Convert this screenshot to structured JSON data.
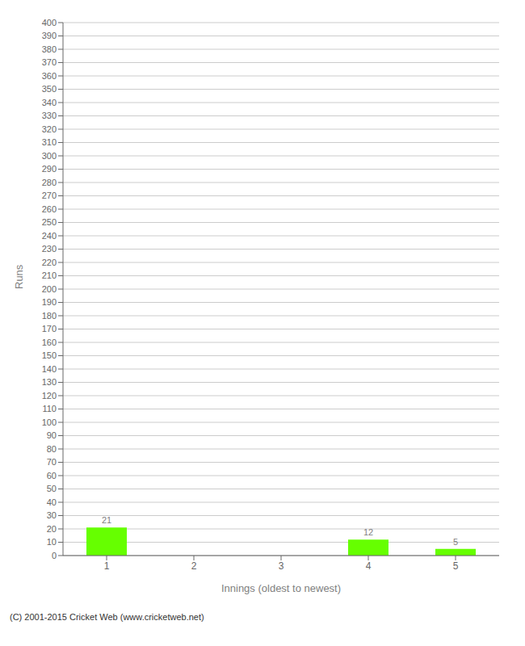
{
  "chart_data": {
    "type": "bar",
    "categories": [
      "1",
      "2",
      "3",
      "4",
      "5"
    ],
    "values": [
      21,
      0,
      0,
      12,
      5
    ],
    "color": "#66ff00",
    "xlabel": "Innings (oldest to newest)",
    "ylabel": "Runs",
    "ylim": [
      0,
      400
    ],
    "yticks": [
      0,
      10,
      20,
      30,
      40,
      50,
      60,
      70,
      80,
      90,
      100,
      110,
      120,
      130,
      140,
      150,
      160,
      170,
      180,
      190,
      200,
      210,
      220,
      230,
      240,
      250,
      260,
      270,
      280,
      290,
      300,
      310,
      320,
      330,
      340,
      350,
      360,
      370,
      380,
      390,
      400
    ],
    "grid": true,
    "data_labels": true,
    "annotations": [
      "(C) 2001-2015 Cricket Web (www.cricketweb.net)"
    ]
  }
}
